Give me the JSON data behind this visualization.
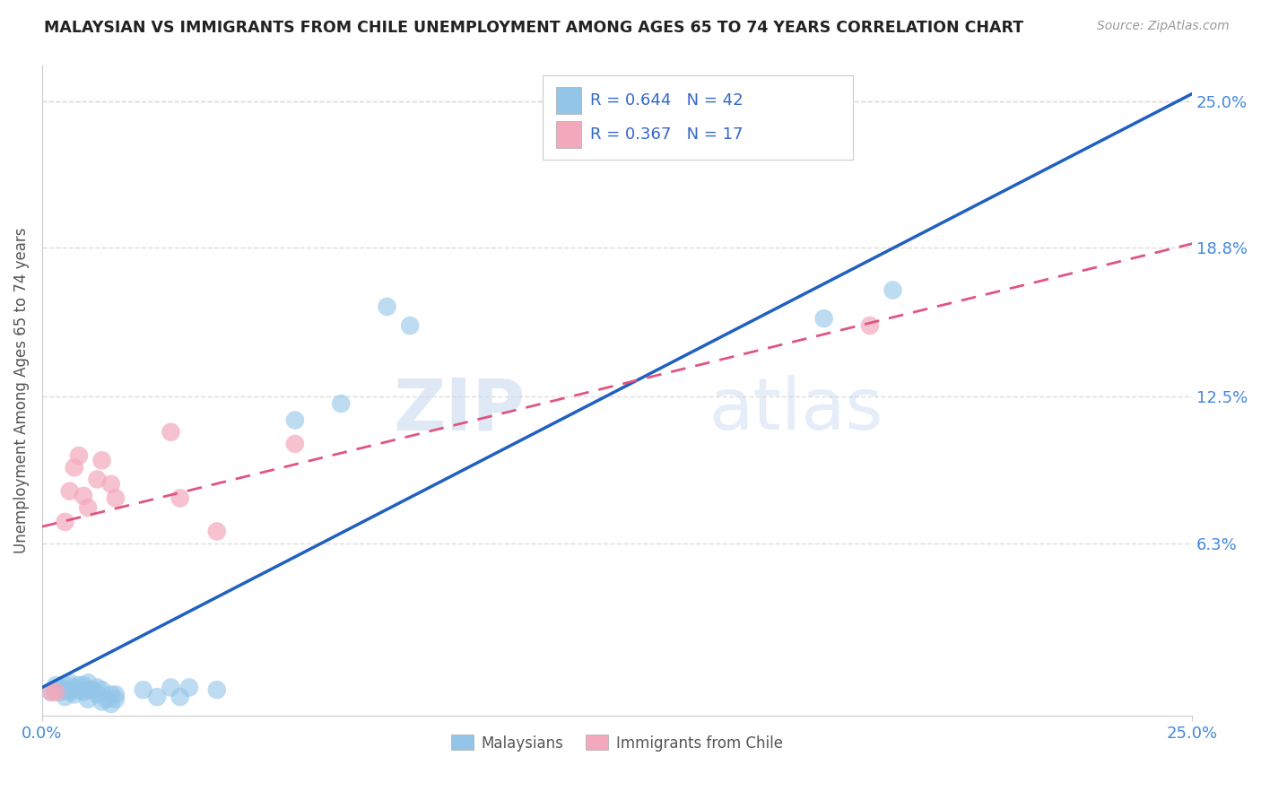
{
  "title": "MALAYSIAN VS IMMIGRANTS FROM CHILE UNEMPLOYMENT AMONG AGES 65 TO 74 YEARS CORRELATION CHART",
  "source": "Source: ZipAtlas.com",
  "ylabel": "Unemployment Among Ages 65 to 74 years",
  "xlim": [
    0.0,
    0.25
  ],
  "ylim": [
    -0.01,
    0.265
  ],
  "ytick_labels": [
    "6.3%",
    "12.5%",
    "18.8%",
    "25.0%"
  ],
  "ytick_values": [
    0.063,
    0.125,
    0.188,
    0.25
  ],
  "watermark_zip": "ZIP",
  "watermark_atlas": "atlas",
  "legend_r1": "R = 0.644",
  "legend_n1": "N = 42",
  "legend_r2": "R = 0.367",
  "legend_n2": "N = 17",
  "blue_color": "#92c5e8",
  "pink_color": "#f4a8bb",
  "blue_line_color": "#2060c0",
  "pink_line_color": "#e05580",
  "blue_scatter": [
    [
      0.002,
      0.0
    ],
    [
      0.003,
      0.001
    ],
    [
      0.003,
      0.003
    ],
    [
      0.004,
      0.0
    ],
    [
      0.004,
      0.002
    ],
    [
      0.005,
      -0.002
    ],
    [
      0.005,
      0.001
    ],
    [
      0.005,
      0.003
    ],
    [
      0.006,
      0.0
    ],
    [
      0.006,
      0.001
    ],
    [
      0.006,
      0.004
    ],
    [
      0.007,
      -0.001
    ],
    [
      0.007,
      0.002
    ],
    [
      0.008,
      0.001
    ],
    [
      0.008,
      0.003
    ],
    [
      0.009,
      0.0
    ],
    [
      0.009,
      0.003
    ],
    [
      0.01,
      -0.003
    ],
    [
      0.01,
      0.001
    ],
    [
      0.01,
      0.004
    ],
    [
      0.011,
      0.001
    ],
    [
      0.012,
      -0.001
    ],
    [
      0.012,
      0.002
    ],
    [
      0.013,
      -0.004
    ],
    [
      0.013,
      0.001
    ],
    [
      0.014,
      -0.003
    ],
    [
      0.015,
      -0.005
    ],
    [
      0.015,
      -0.001
    ],
    [
      0.016,
      -0.003
    ],
    [
      0.016,
      -0.001
    ],
    [
      0.022,
      0.001
    ],
    [
      0.025,
      -0.002
    ],
    [
      0.028,
      0.002
    ],
    [
      0.03,
      -0.002
    ],
    [
      0.032,
      0.002
    ],
    [
      0.038,
      0.001
    ],
    [
      0.055,
      0.115
    ],
    [
      0.065,
      0.122
    ],
    [
      0.075,
      0.163
    ],
    [
      0.08,
      0.155
    ],
    [
      0.17,
      0.158
    ],
    [
      0.185,
      0.17
    ]
  ],
  "pink_scatter": [
    [
      0.002,
      0.0
    ],
    [
      0.003,
      0.0
    ],
    [
      0.005,
      0.072
    ],
    [
      0.006,
      0.085
    ],
    [
      0.007,
      0.095
    ],
    [
      0.008,
      0.1
    ],
    [
      0.009,
      0.083
    ],
    [
      0.01,
      0.078
    ],
    [
      0.012,
      0.09
    ],
    [
      0.013,
      0.098
    ],
    [
      0.015,
      0.088
    ],
    [
      0.016,
      0.082
    ],
    [
      0.028,
      0.11
    ],
    [
      0.03,
      0.082
    ],
    [
      0.038,
      0.068
    ],
    [
      0.055,
      0.105
    ],
    [
      0.18,
      0.155
    ]
  ],
  "blue_trendline_x": [
    0.0,
    0.255
  ],
  "blue_trendline_y": [
    0.002,
    0.258
  ],
  "pink_trendline_x": [
    0.0,
    0.255
  ],
  "pink_trendline_y": [
    0.07,
    0.192
  ],
  "background_color": "#ffffff",
  "grid_color": "#dddddd",
  "title_color": "#222222",
  "tick_color": "#4488dd",
  "rn_color": "#3366cc"
}
